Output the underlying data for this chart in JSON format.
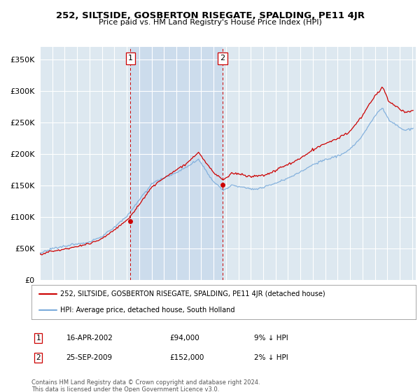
{
  "title": "252, SILTSIDE, GOSBERTON RISEGATE, SPALDING, PE11 4JR",
  "subtitle": "Price paid vs. HM Land Registry's House Price Index (HPI)",
  "ylabel_ticks": [
    "£0",
    "£50K",
    "£100K",
    "£150K",
    "£200K",
    "£250K",
    "£300K",
    "£350K"
  ],
  "ytick_values": [
    0,
    50000,
    100000,
    150000,
    200000,
    250000,
    300000,
    350000
  ],
  "ylim": [
    0,
    370000
  ],
  "xlim_start": 1995.0,
  "xlim_end": 2025.3,
  "sale1_x": 2002.29,
  "sale1_y": 94000,
  "sale2_x": 2009.73,
  "sale2_y": 152000,
  "sale1_label": "16-APR-2002",
  "sale1_price": "£94,000",
  "sale1_hpi": "9% ↓ HPI",
  "sale2_label": "25-SEP-2009",
  "sale2_price": "£152,000",
  "sale2_hpi": "2% ↓ HPI",
  "legend_red": "252, SILTSIDE, GOSBERTON RISEGATE, SPALDING, PE11 4JR (detached house)",
  "legend_blue": "HPI: Average price, detached house, South Holland",
  "footer": "Contains HM Land Registry data © Crown copyright and database right 2024.\nThis data is licensed under the Open Government Licence v3.0.",
  "red_color": "#cc0000",
  "blue_color": "#7aabdb",
  "bg_color": "#dde8f0",
  "shade_color": "#ccdcec",
  "grid_color": "#ffffff",
  "vline_color": "#cc0000"
}
